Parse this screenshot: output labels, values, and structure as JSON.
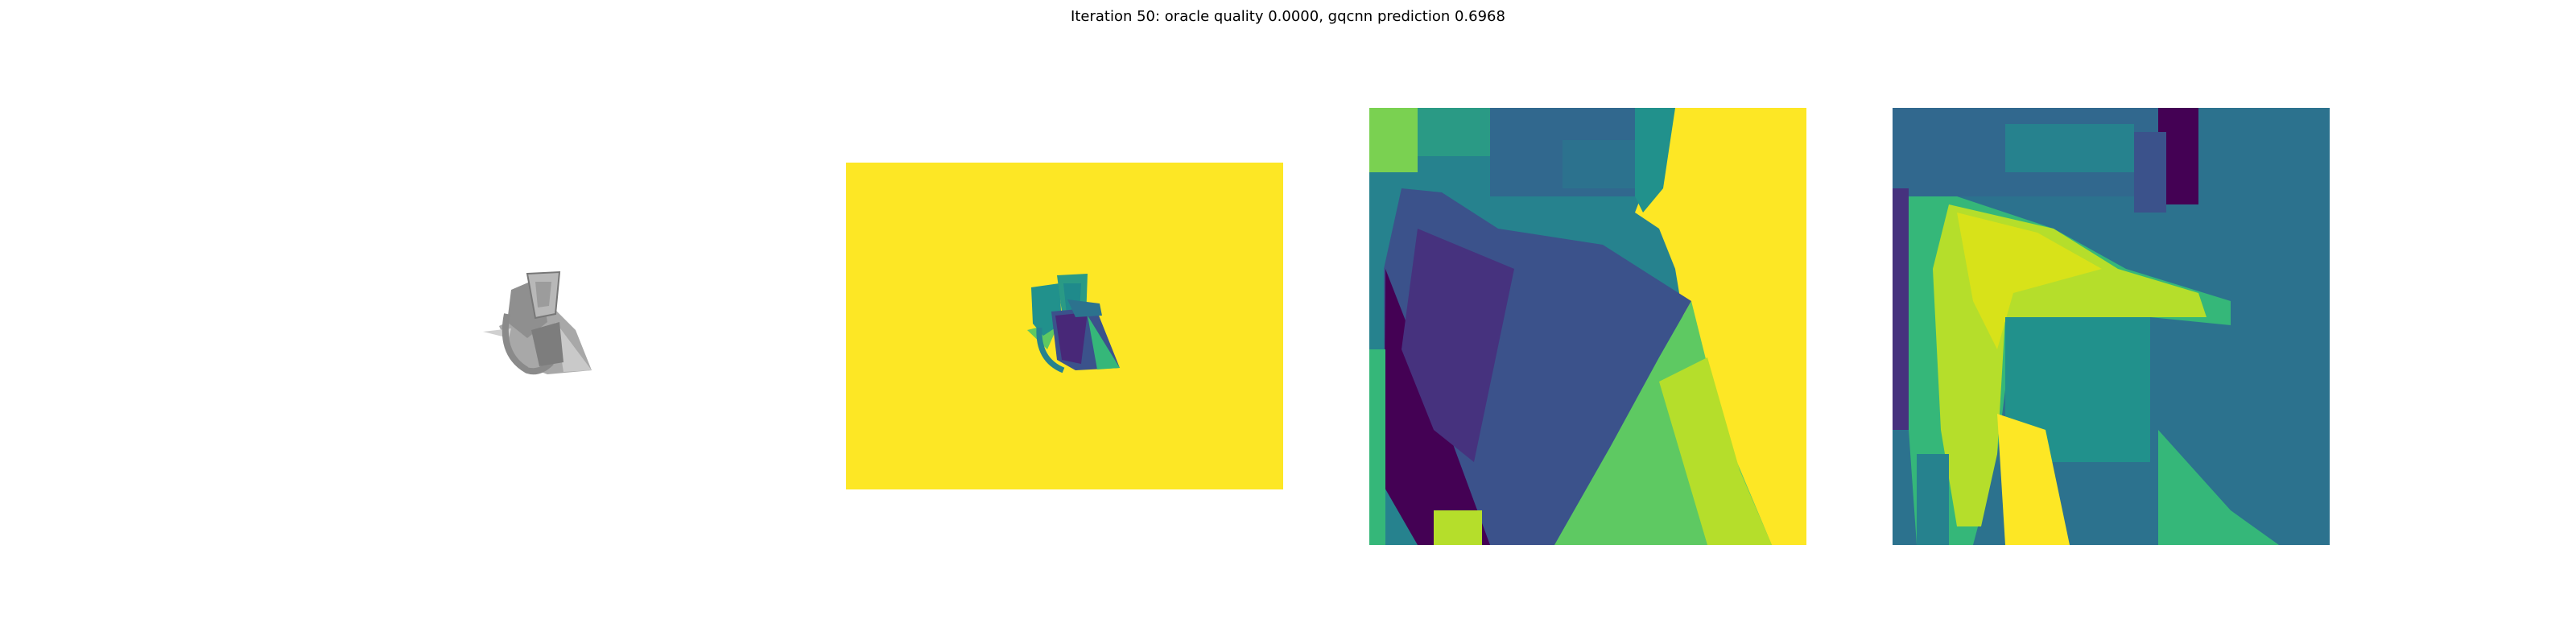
{
  "figure": {
    "title": "Iteration 50: oracle quality 0.0000, gqcnn prediction 0.6968"
  },
  "panels": [
    {
      "content": "rendered grayscale mesh of object"
    },
    {
      "content": "depth image (viridis colormap) of object on yellow background"
    },
    {
      "content": "zoomed depth crop"
    },
    {
      "content": "gqcnn feature / saliency crop"
    }
  ],
  "colors": {
    "background": "#ffffff",
    "viridis_yellow": "#fde725",
    "viridis_purple": "#440154",
    "viridis_blue": "#3b528b",
    "viridis_teal": "#21918c",
    "viridis_green": "#5ec962",
    "mesh_gray": "#9a9a9a"
  }
}
